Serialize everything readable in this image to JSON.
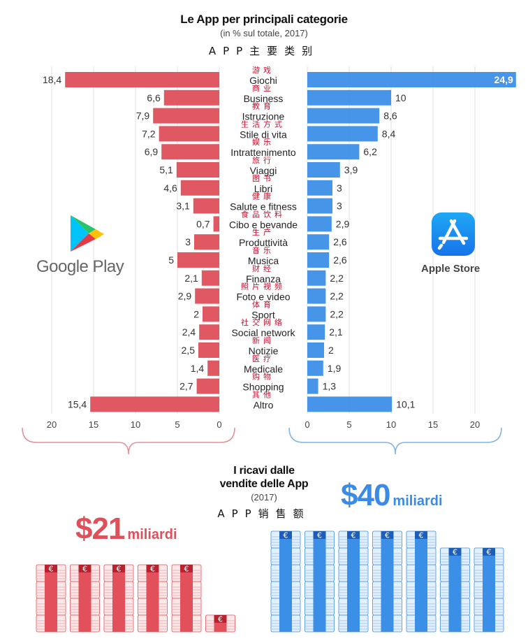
{
  "header": {
    "title": "Le App per principali categorie",
    "subtitle": "(in % sul totale, 2017)",
    "title_cn": "APP主要类别"
  },
  "logos": {
    "left": {
      "icon": "google-play-icon",
      "label": "Google Play"
    },
    "right": {
      "icon": "app-store-icon",
      "label": "Apple Store"
    }
  },
  "colors": {
    "google": "#de505a",
    "apple": "#3d8fe8",
    "cn_label": "#c8102e",
    "grid": "#e2e2e2"
  },
  "chart_data": {
    "type": "bar",
    "orientation": "horizontal-butterfly",
    "title": "Le App per principali categorie",
    "subtitle": "(in % sul totale, 2017)",
    "unit": "%",
    "categories": [
      "Giochi",
      "Business",
      "Istruzione",
      "Stile di vita",
      "Intrattenimento",
      "Viaggi",
      "Libri",
      "Salute e fitness",
      "Cibo e bevande",
      "Produttività",
      "Musica",
      "Finanza",
      "Foto e video",
      "Sport",
      "Social network",
      "Notizie",
      "Medicale",
      "Shopping",
      "Altro"
    ],
    "categories_cn": [
      "游戏",
      "商业",
      "教育",
      "生活方式",
      "娱乐",
      "旅行",
      "图书",
      "健康",
      "食品饮料",
      "生产",
      "音乐",
      "财经",
      "照片视频",
      "体育",
      "社交网络",
      "新闻",
      "医疗",
      "购物",
      "其他"
    ],
    "series": [
      {
        "name": "Google Play",
        "side": "left",
        "values": [
          18.4,
          6.6,
          7.9,
          7.2,
          6.9,
          5.1,
          4.6,
          3.1,
          0.7,
          3,
          5,
          2.1,
          2.9,
          2,
          2.4,
          2.5,
          1.4,
          2.7,
          15.4
        ],
        "labels": [
          "18,4",
          "6,6",
          "7,9",
          "7,2",
          "6,9",
          "5,1",
          "4,6",
          "3,1",
          "0,7",
          "3",
          "5",
          "2,1",
          "2,9",
          "2",
          "2,4",
          "2,5",
          "1,4",
          "2,7",
          "15,4"
        ]
      },
      {
        "name": "Apple Store",
        "side": "right",
        "values": [
          24.9,
          10,
          8.6,
          8.4,
          6.2,
          3.9,
          3,
          3,
          2.9,
          2.6,
          2.6,
          2.2,
          2.2,
          2.2,
          2.1,
          2,
          1.9,
          1.3,
          10.1
        ],
        "labels": [
          "24,9",
          "10",
          "8,6",
          "8,4",
          "6,2",
          "3,9",
          "3",
          "3",
          "2,9",
          "2,6",
          "2,6",
          "2,2",
          "2,2",
          "2,2",
          "2,1",
          "2",
          "1,9",
          "1,3",
          "10,1"
        ]
      }
    ],
    "xlim": [
      0,
      20
    ],
    "ticks": [
      "0",
      "5",
      "10",
      "15",
      "20"
    ],
    "grid": true
  },
  "revenue": {
    "title_line1": "I ricavi dalle",
    "title_line2": "vendite delle App",
    "year": "(2017)",
    "title_cn": "APP销售额",
    "google": {
      "amount": "$21",
      "unit": "miliardi",
      "value_billion": 21,
      "stacks": [
        4,
        4,
        4,
        4,
        4,
        1
      ]
    },
    "apple": {
      "amount": "$40",
      "unit": "miliardi",
      "value_billion": 40,
      "stacks": [
        6,
        6,
        6,
        6,
        6,
        5,
        5
      ]
    },
    "bundle_symbol": "€"
  }
}
